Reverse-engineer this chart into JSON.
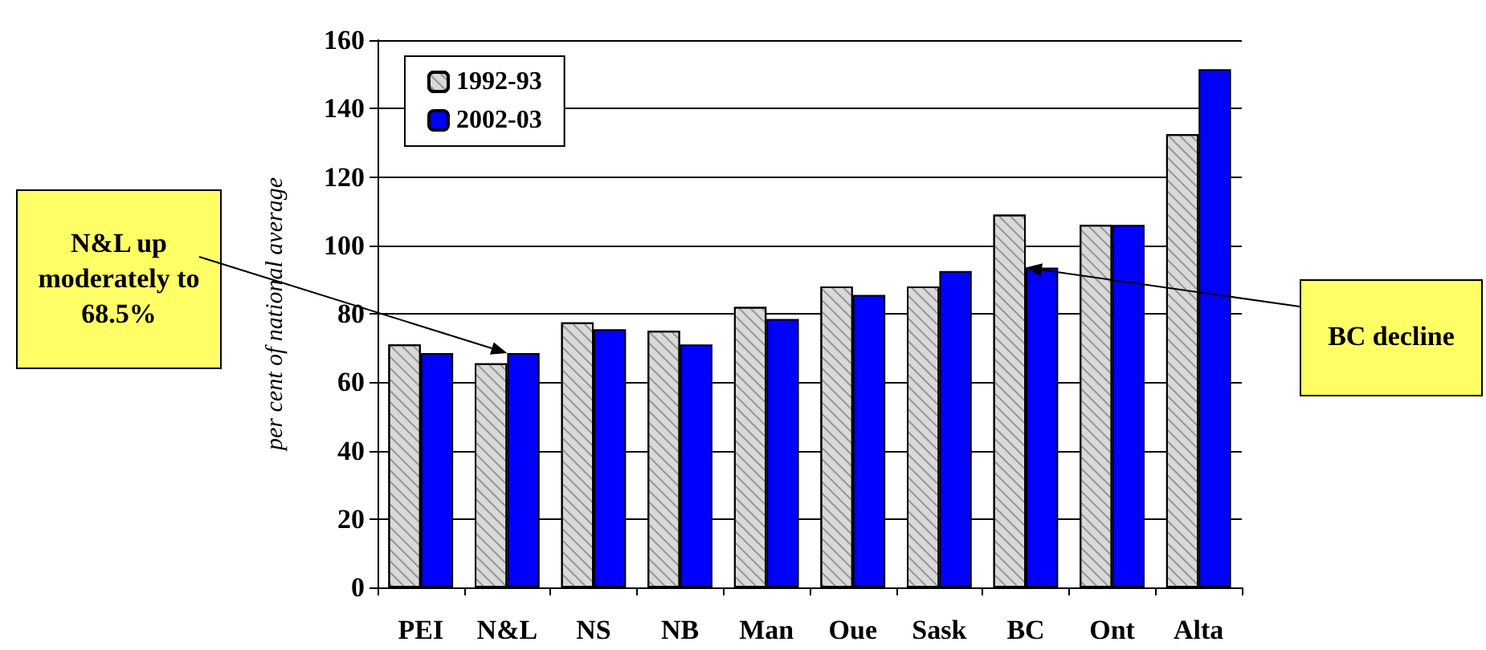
{
  "chart_data": {
    "type": "bar",
    "ylabel": "per cent of national average",
    "categories": [
      "PEI",
      "N&L",
      "NS",
      "NB",
      "Man",
      "Oue",
      "Sask",
      "BC",
      "Ont",
      "Alta"
    ],
    "series": [
      {
        "name": "1992-93",
        "color": "#d9d9d9",
        "values": [
          71,
          65.5,
          77.5,
          75,
          82,
          88,
          88,
          109,
          106,
          132.5
        ]
      },
      {
        "name": "2002-03",
        "color": "#0000ff",
        "values": [
          68.5,
          68.5,
          75.5,
          71,
          78.5,
          85.5,
          92.5,
          93.5,
          106,
          151.5
        ]
      }
    ],
    "ylim": [
      0,
      160
    ],
    "yticks": [
      0,
      20,
      40,
      60,
      80,
      100,
      120,
      140,
      160
    ],
    "grid": "y",
    "legend": "top left",
    "annotations": [
      {
        "text": "N&L up moderately to 68.5%",
        "x": "N&L",
        "y": 68.5
      },
      {
        "text": "BC decline",
        "x": "BC",
        "y": 93.5
      }
    ]
  }
}
